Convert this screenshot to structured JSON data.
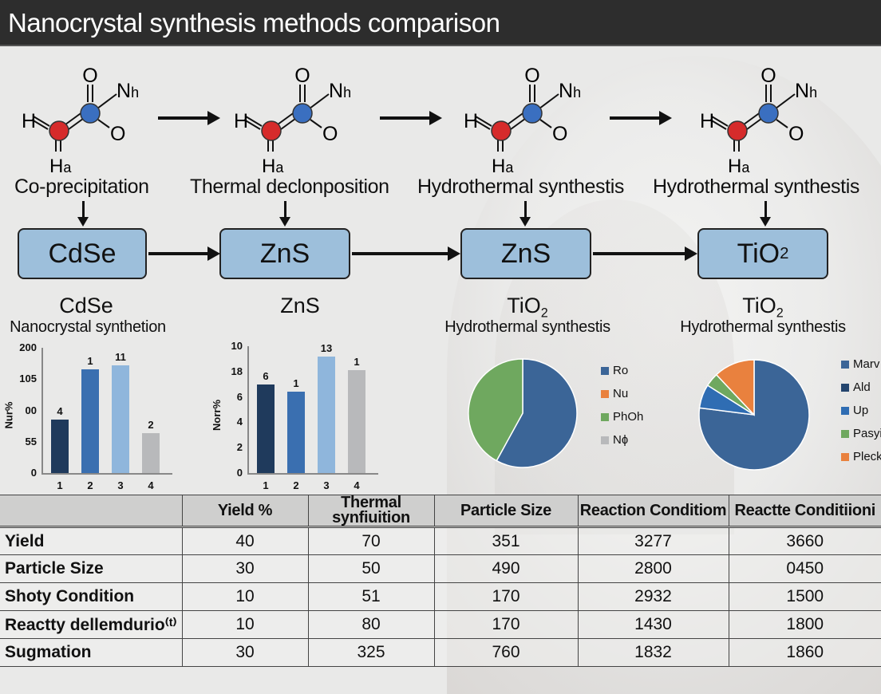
{
  "header": {
    "title": "Nanocrystal synthesis methods comparison"
  },
  "molecule": {
    "atoms": {
      "top_o": "O",
      "right_n": "Nh",
      "left_h": "H",
      "right_o": "O",
      "bottom_h": "Ha"
    },
    "colors": {
      "red_atom": "#d62b2b",
      "blue_atom": "#3a6fc0"
    }
  },
  "methods": [
    {
      "label": "Co-precipitation"
    },
    {
      "label": "Thermal declonposition"
    },
    {
      "label": "Hydrothermal synthestis"
    },
    {
      "label": "Hydrothermal synthestis"
    }
  ],
  "boxes": [
    {
      "label": "CdSe"
    },
    {
      "label": "ZnS"
    },
    {
      "label": "ZnS"
    },
    {
      "label": "TiO",
      "sub": "2"
    }
  ],
  "captions": [
    {
      "title": "CdSe",
      "subtitle": "Nanocrystal synthetion"
    },
    {
      "title": "ZnS",
      "subtitle": ""
    },
    {
      "title": "TiO",
      "title_sub": "2",
      "subtitle": "Hydrothermal synthestis"
    },
    {
      "title": "TiO",
      "title_sub": "2",
      "subtitle": "Hydrothermal synthestis"
    }
  ],
  "colors": {
    "header_bg": "#2d2d2d",
    "box_fill": "#9dbfdb",
    "bar_dark": "#1f3a5c",
    "bar_mid": "#3a6fb0",
    "bar_light": "#8fb6dc",
    "bar_gray": "#b8b9bb",
    "pie_blue": "#3b6597",
    "pie_green": "#6fa85f",
    "pie_orange": "#e9813e",
    "pie_lightblue": "#2f6db3"
  },
  "chart_data": [
    {
      "type": "bar",
      "title": "CdSe Nanocrystal synthetion",
      "ylabel": "Nur%",
      "xlabel": "",
      "y_ticks": [
        "200",
        "105",
        "00",
        "55",
        "0"
      ],
      "categories": [
        "1",
        "2",
        "3",
        "4"
      ],
      "values": [
        85,
        165,
        172,
        64
      ],
      "bar_labels": [
        "4",
        "1",
        "11",
        "2"
      ],
      "ylim": [
        0,
        200
      ],
      "grid": false,
      "colors": [
        "#1f3a5c",
        "#3a6fb0",
        "#8fb6dc",
        "#b8b9bb"
      ]
    },
    {
      "type": "bar",
      "title": "ZnS",
      "ylabel": "Norr%",
      "xlabel": "",
      "y_ticks": [
        "10",
        "18",
        "6",
        "4",
        "2",
        "0"
      ],
      "categories": [
        "1",
        "2",
        "3",
        "4"
      ],
      "values": [
        7.0,
        6.4,
        9.2,
        8.1
      ],
      "bar_labels": [
        "6",
        "1",
        "13",
        "1"
      ],
      "ylim": [
        0,
        10
      ],
      "grid": false,
      "colors": [
        "#1f3a5c",
        "#3a6fb0",
        "#8fb6dc",
        "#b8b9bb"
      ]
    },
    {
      "type": "pie",
      "title": "TiO2 Hydrothermal synthestis",
      "legend": [
        "Ro",
        "Nu",
        "PhOh",
        "Nɸ"
      ],
      "values": [
        58,
        0,
        42,
        0
      ],
      "colors": [
        "#3b6597",
        "#e9813e",
        "#6fa85f",
        "#b8b9bb"
      ],
      "legend_position": "right"
    },
    {
      "type": "pie",
      "title": "TiO2 Hydrothermal synthestis",
      "legend": [
        "Marv",
        "Ald",
        "Up",
        "Pasyin",
        "Pleck"
      ],
      "values": [
        77,
        0,
        7,
        4,
        12
      ],
      "colors": [
        "#3b6597",
        "#24456e",
        "#2f6db3",
        "#6fa85f",
        "#e9813e"
      ],
      "legend_position": "right"
    }
  ],
  "table": {
    "headers": [
      "",
      "Yield %",
      "Thermal synfiuition",
      "Particle Size",
      "Reaction Conditiom",
      "Reactte Conditiioni"
    ],
    "rows": [
      [
        "Yield",
        "40",
        "70",
        "351",
        "3277",
        "3660"
      ],
      [
        "Particle Size",
        "30",
        "50",
        "490",
        "2800",
        "0450"
      ],
      [
        "Shoty Condition",
        "10",
        "51",
        "170",
        "2932",
        "1500"
      ],
      [
        "Reactty dellemdurio⁽ᵗ⁾",
        "10",
        "80",
        "170",
        "1430",
        "1800"
      ],
      [
        "Sugmation",
        "30",
        "325",
        "760",
        "1832",
        "1860"
      ]
    ]
  }
}
